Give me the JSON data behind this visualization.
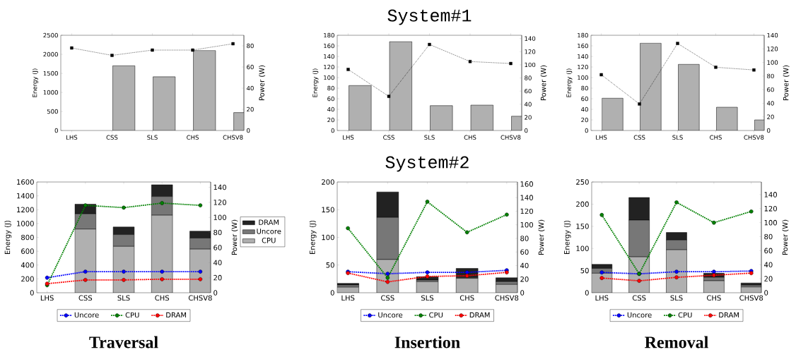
{
  "chart_data": [
    {
      "type": "bar",
      "ylabel": "Energy (J)",
      "y2label": "Power (W)",
      "categories": [
        "LHS",
        "CSS",
        "SLS",
        "CHS",
        "CHSV8"
      ],
      "ylim": [
        0,
        2500
      ],
      "yticks": [
        0,
        500,
        1000,
        1500,
        2000,
        2500
      ],
      "y2lim": [
        0,
        90
      ],
      "y2ticks": [
        0,
        20,
        40,
        60,
        80
      ],
      "series": [
        {
          "color": "#b0b0b0",
          "values": [
            null,
            1700,
            1410,
            2100,
            470
          ]
        },
        {
          "type": "line",
          "axis": "y2",
          "color": "#000000",
          "marker": "square",
          "line_style": "dotted",
          "values": [
            78,
            71,
            76,
            76,
            82
          ]
        }
      ]
    },
    {
      "type": "bar",
      "title": "System#1",
      "ylabel": "Energy (J)",
      "y2label": "Power (W)",
      "categories": [
        "LHS",
        "CSS",
        "SLS",
        "CHS",
        "CHSV8"
      ],
      "ylim": [
        0,
        180
      ],
      "yticks": [
        0,
        20,
        40,
        60,
        80,
        100,
        120,
        140,
        160,
        180
      ],
      "y2lim": [
        0,
        145
      ],
      "y2ticks": [
        0,
        20,
        40,
        60,
        80,
        100,
        120,
        140
      ],
      "series": [
        {
          "color": "#b0b0b0",
          "values": [
            85,
            168,
            47,
            48,
            27
          ]
        },
        {
          "type": "line",
          "axis": "y2",
          "color": "#000000",
          "marker": "square",
          "line_style": "dotted",
          "values": [
            93,
            52,
            131,
            105,
            102
          ]
        }
      ]
    },
    {
      "type": "bar",
      "ylabel": "Energy (J)",
      "y2label": "Power (W)",
      "categories": [
        "LHS",
        "CSS",
        "SLS",
        "CHS",
        "CHSV8"
      ],
      "ylim": [
        0,
        180
      ],
      "yticks": [
        0,
        20,
        40,
        60,
        80,
        100,
        120,
        140,
        160,
        180
      ],
      "y2lim": [
        0,
        140
      ],
      "y2ticks": [
        0,
        20,
        40,
        60,
        80,
        100,
        120,
        140
      ],
      "series": [
        {
          "color": "#b0b0b0",
          "values": [
            61,
            165,
            125,
            44,
            20
          ]
        },
        {
          "type": "line",
          "axis": "y2",
          "color": "#000000",
          "marker": "square",
          "line_style": "dotted",
          "values": [
            82,
            39,
            128,
            93,
            89
          ]
        }
      ]
    },
    {
      "type": "bar",
      "xlabel": "Traversal",
      "ylabel": "Energy (J)",
      "y2label": "Power (W)",
      "categories": [
        "LHS",
        "CSS",
        "SLS",
        "CHS",
        "CHSV8"
      ],
      "stacked": true,
      "legend": "bottom",
      "ylim": [
        0,
        1600
      ],
      "yticks": [
        0,
        200,
        400,
        600,
        800,
        1000,
        1200,
        1400,
        1600
      ],
      "y2lim": [
        0,
        147
      ],
      "y2ticks": [
        0,
        20,
        40,
        60,
        80,
        100,
        120,
        140
      ],
      "series": [
        {
          "name": "CPU",
          "color": "#b0b0b0",
          "values": [
            null,
            920,
            670,
            1120,
            630
          ]
        },
        {
          "name": "Uncore",
          "color": "#777777",
          "values": [
            null,
            220,
            170,
            270,
            160
          ]
        },
        {
          "name": "DRAM",
          "color": "#222222",
          "values": [
            null,
            140,
            110,
            170,
            100
          ]
        },
        {
          "name": "Uncore",
          "type": "line",
          "axis": "y2",
          "color": "#0000ff",
          "marker": "circle",
          "line_style": "dotted",
          "values": [
            20,
            28,
            28,
            28,
            28
          ]
        },
        {
          "name": "CPU",
          "type": "line",
          "axis": "y2",
          "color": "#008000",
          "marker": "circle",
          "line_style": "dotted",
          "values": [
            10,
            116,
            113,
            119,
            116
          ]
        },
        {
          "name": "DRAM",
          "type": "line",
          "axis": "y2",
          "color": "#ff0000",
          "marker": "circle",
          "line_style": "dotted",
          "values": [
            12,
            17,
            17,
            18,
            18
          ]
        }
      ]
    },
    {
      "type": "bar",
      "title": "System#2",
      "xlabel": "Insertion",
      "ylabel": "Energy (J)",
      "y2label": "Power (W)",
      "categories": [
        "LHS",
        "CSS",
        "SLS",
        "CHS",
        "CHSV8"
      ],
      "stacked": true,
      "legend": "bottom",
      "ylim": [
        0,
        200
      ],
      "yticks": [
        0,
        50,
        100,
        150,
        200
      ],
      "y2lim": [
        0,
        163
      ],
      "y2ticks": [
        0,
        20,
        40,
        60,
        80,
        100,
        120,
        140,
        160
      ],
      "series": [
        {
          "color": "#b0b0b0",
          "values": [
            10,
            60,
            20,
            26,
            15
          ]
        },
        {
          "color": "#777777",
          "values": [
            4,
            76,
            3,
            1,
            5
          ]
        },
        {
          "color": "#222222",
          "values": [
            3,
            46,
            6,
            17,
            7
          ]
        },
        {
          "name": "Uncore",
          "type": "line",
          "axis": "y2",
          "color": "#0000ff",
          "marker": "circle",
          "line_style": "dotted",
          "values": [
            31,
            28,
            30,
            30,
            33
          ]
        },
        {
          "name": "CPU",
          "type": "line",
          "axis": "y2",
          "color": "#008000",
          "marker": "circle",
          "line_style": "dotted",
          "values": [
            95,
            22,
            134,
            89,
            115
          ]
        },
        {
          "name": "DRAM",
          "type": "line",
          "axis": "y2",
          "color": "#ff0000",
          "marker": "circle",
          "line_style": "dotted",
          "values": [
            29,
            16,
            24,
            25,
            30
          ]
        }
      ]
    },
    {
      "type": "bar",
      "xlabel": "Removal",
      "ylabel": "Energy (J)",
      "y2label": "Power (W)",
      "categories": [
        "LHS",
        "CSS",
        "SLS",
        "CHS",
        "CHSV8"
      ],
      "stacked": true,
      "legend": "bottom",
      "ylim": [
        0,
        250
      ],
      "yticks": [
        0,
        50,
        100,
        150,
        200,
        250
      ],
      "y2lim": [
        0,
        158
      ],
      "y2ticks": [
        0,
        20,
        40,
        60,
        80,
        100,
        120,
        140
      ],
      "series": [
        {
          "color": "#b0b0b0",
          "values": [
            44,
            81,
            97,
            27,
            13
          ]
        },
        {
          "color": "#777777",
          "values": [
            11,
            83,
            22,
            8,
            4
          ]
        },
        {
          "color": "#222222",
          "values": [
            9,
            51,
            17,
            9,
            5
          ]
        },
        {
          "name": "Uncore",
          "type": "line",
          "axis": "y2",
          "color": "#0000ff",
          "marker": "circle",
          "line_style": "dotted",
          "values": [
            29,
            27,
            30,
            30,
            31
          ]
        },
        {
          "name": "CPU",
          "type": "line",
          "axis": "y2",
          "color": "#008000",
          "marker": "circle",
          "line_style": "dotted",
          "values": [
            111,
            27,
            129,
            100,
            116
          ]
        },
        {
          "name": "DRAM",
          "type": "line",
          "axis": "y2",
          "color": "#ff0000",
          "marker": "circle",
          "line_style": "dotted",
          "values": [
            21,
            17,
            22,
            25,
            28
          ]
        }
      ]
    }
  ]
}
